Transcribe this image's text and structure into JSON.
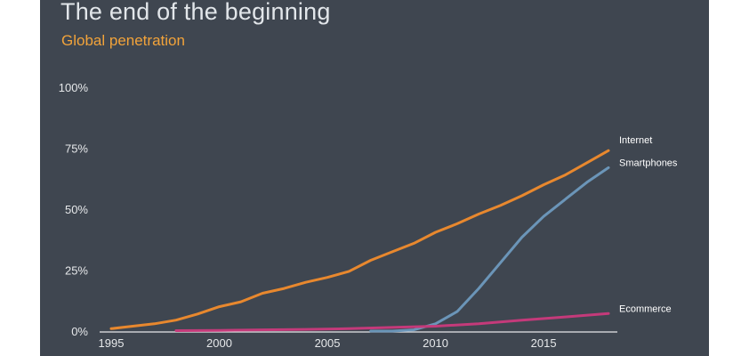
{
  "header": {
    "title": "The end of the beginning",
    "subtitle": "Global penetration"
  },
  "chart_data": {
    "type": "line",
    "title": "The end of the beginning",
    "subtitle": "Global penetration",
    "xlim": [
      1995,
      2018
    ],
    "ylim": [
      0,
      100
    ],
    "x_ticks": [
      1995,
      2000,
      2005,
      2010,
      2015
    ],
    "x_tick_labels": [
      "1995",
      "2000",
      "2005",
      "2010",
      "2015"
    ],
    "y_ticks": [
      0,
      25,
      50,
      75,
      100
    ],
    "y_tick_labels": [
      "0%",
      "25%",
      "50%",
      "75%",
      "100%"
    ],
    "grid": false,
    "legend": "inline-right",
    "series": [
      {
        "name": "Internet",
        "color": "#e8882e",
        "x": [
          1995,
          1996,
          1997,
          1998,
          1999,
          2000,
          2001,
          2002,
          2003,
          2004,
          2005,
          2006,
          2007,
          2008,
          2009,
          2010,
          2011,
          2012,
          2013,
          2014,
          2015,
          2016,
          2017,
          2018
        ],
        "y": [
          1,
          2,
          3,
          4.5,
          7,
          10,
          12,
          15.5,
          17.5,
          20,
          22,
          24.5,
          29,
          32.5,
          36,
          40.5,
          44,
          48,
          51.5,
          55.5,
          60,
          64,
          69,
          74
        ]
      },
      {
        "name": "Smartphones",
        "color": "#6b95b8",
        "x": [
          2007,
          2008,
          2009,
          2010,
          2011,
          2012,
          2013,
          2014,
          2015,
          2016,
          2017,
          2018
        ],
        "y": [
          0,
          0,
          0.5,
          3,
          8,
          17.5,
          28,
          38.5,
          47,
          54,
          61,
          67
        ]
      },
      {
        "name": "Ecommerce",
        "color": "#c43a7a",
        "x": [
          1998,
          2000,
          2002,
          2004,
          2006,
          2008,
          2010,
          2012,
          2014,
          2016,
          2018
        ],
        "y": [
          0.2,
          0.3,
          0.5,
          0.7,
          1,
          1.5,
          2,
          3,
          4.5,
          5.8,
          7.2
        ]
      }
    ]
  }
}
